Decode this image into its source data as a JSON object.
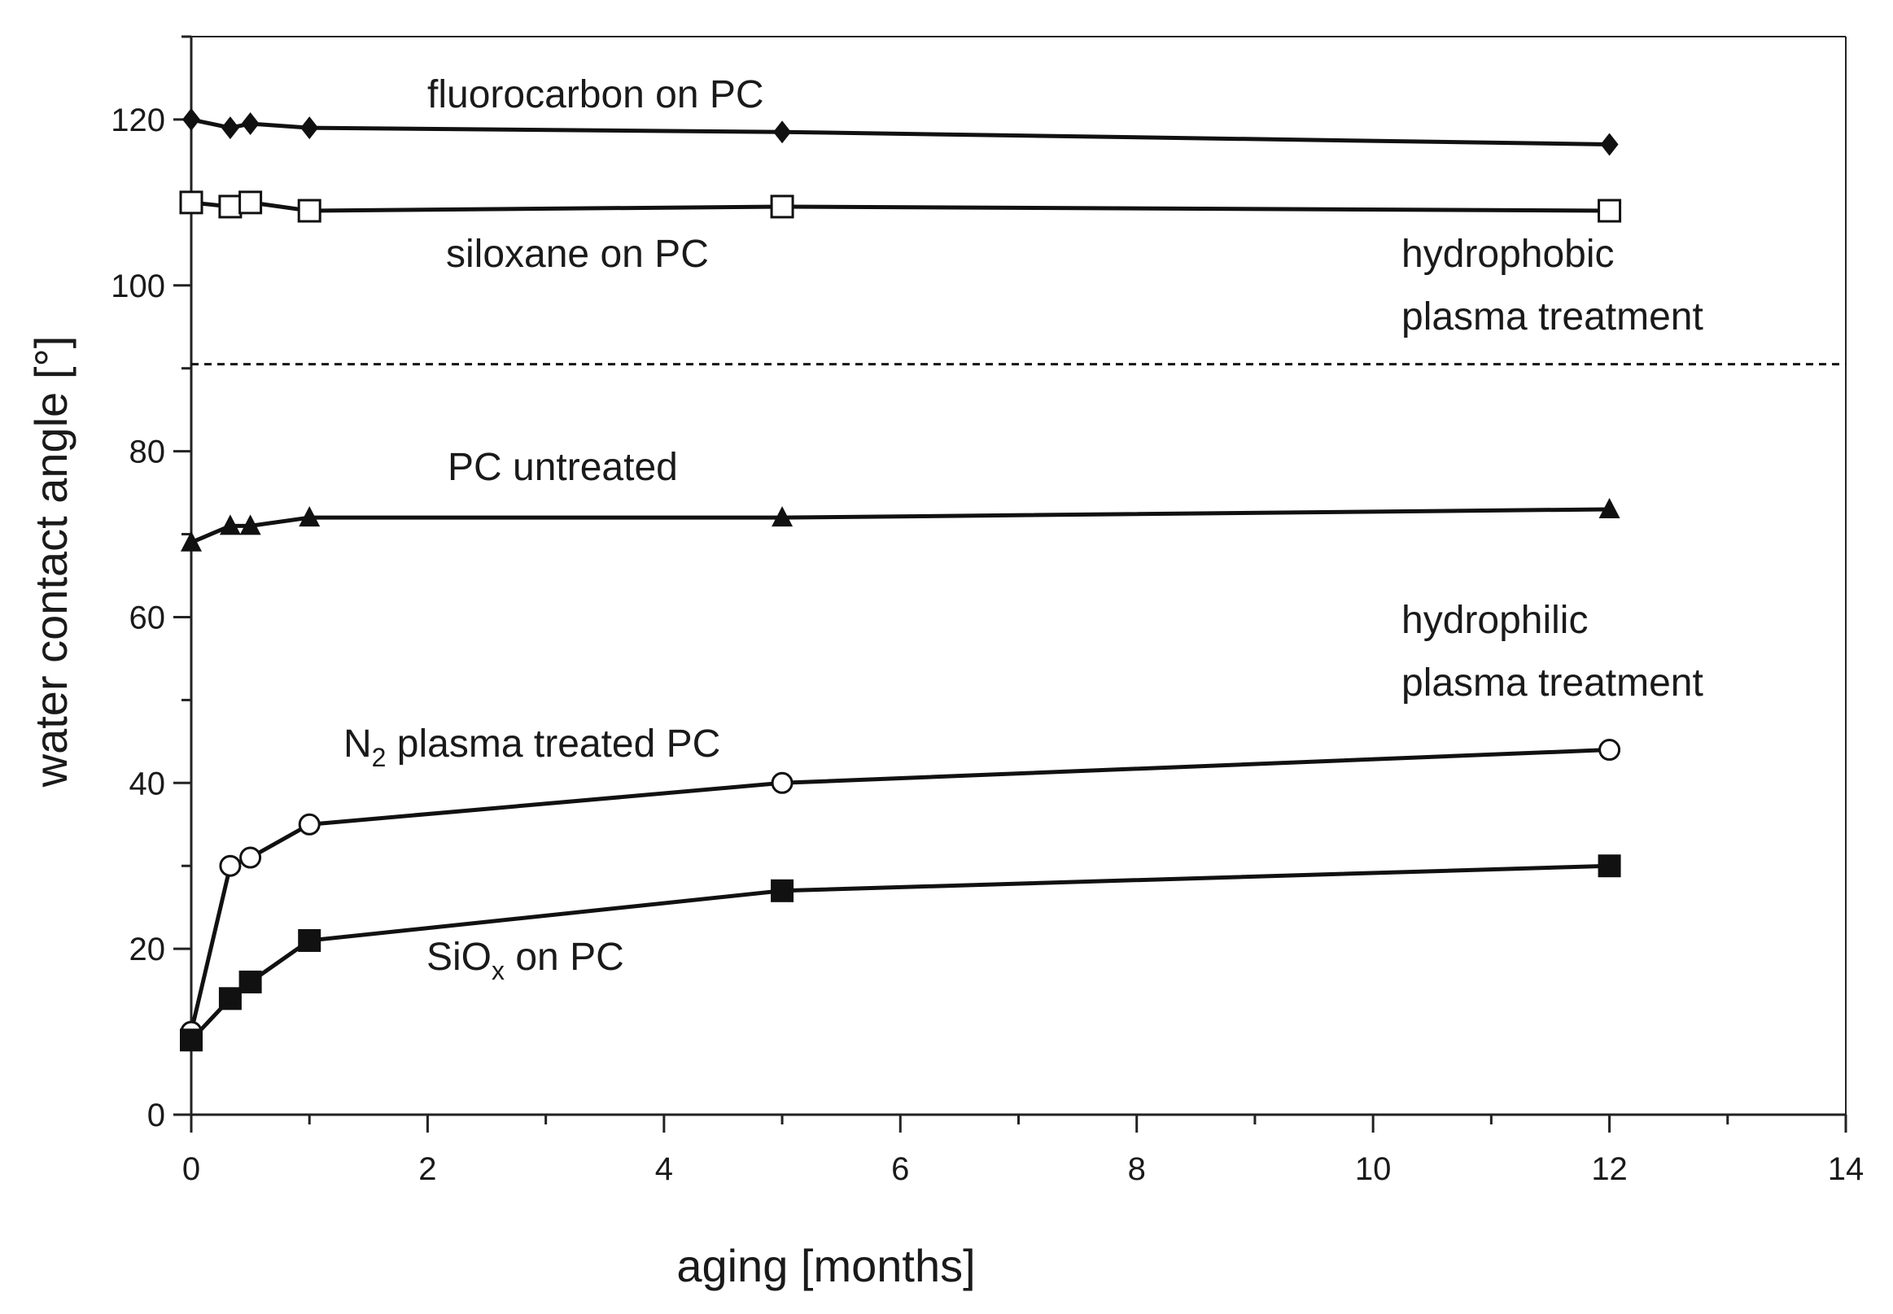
{
  "chart_data": {
    "type": "line",
    "title": "",
    "xlabel": "aging [months]",
    "ylabel": "water contact angle [°]",
    "xlim": [
      0,
      14
    ],
    "ylim": [
      0,
      130
    ],
    "x_ticks": [
      "0",
      "2",
      "4",
      "6",
      "8",
      "10",
      "12",
      "14"
    ],
    "y_ticks": [
      "0",
      "20",
      "40",
      "60",
      "80",
      "100",
      "120"
    ],
    "grid": false,
    "x": [
      0,
      0.33,
      0.5,
      1,
      5,
      12
    ],
    "series": [
      {
        "name": "fluorocarbon on PC",
        "marker": "diamond-filled",
        "values": [
          120,
          119,
          119.5,
          119,
          118.5,
          117
        ]
      },
      {
        "name": "siloxane on PC",
        "marker": "square-open",
        "values": [
          110,
          109.5,
          110,
          109,
          109.5,
          109
        ]
      },
      {
        "name": "PC untreated",
        "marker": "triangle-filled",
        "values": [
          69,
          71,
          71,
          72,
          72,
          73
        ]
      },
      {
        "name": "N2 plasma treated PC",
        "marker": "circle-open",
        "values": [
          10,
          30,
          31,
          35,
          40,
          44
        ]
      },
      {
        "name": "SiOx on PC",
        "marker": "square-filled",
        "values": [
          9,
          14,
          16,
          21,
          27,
          30
        ]
      }
    ],
    "reference_line": {
      "style": "dashed",
      "y": 90.5
    },
    "annotations": {
      "fluorocarbon": "fluorocarbon on PC",
      "siloxane": "siloxane on PC",
      "untreated": "PC untreated",
      "n2_main": "N",
      "n2_sub": "2",
      "n2_rest": " plasma treated PC",
      "siox_main": "SiO",
      "siox_sub": "x",
      "siox_rest": " on PC",
      "hydrophobic_1": "hydrophobic",
      "hydrophobic_2": "plasma treatment",
      "hydrophilic_1": "hydrophilic",
      "hydrophilic_2": "plasma treatment"
    },
    "colors": {
      "line": "#111111",
      "axis": "#222222",
      "background": "#ffffff"
    }
  }
}
